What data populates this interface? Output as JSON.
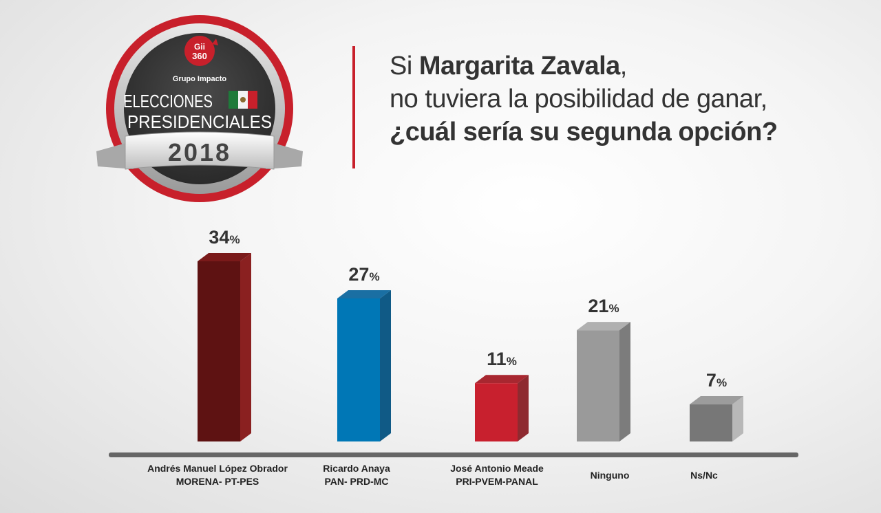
{
  "badge": {
    "logo_line1": "Gii",
    "logo_line2": "360",
    "brand": "Grupo Impacto",
    "line1": "ELECCIONES",
    "line2": "PRESIDENCIALES",
    "year": "2018"
  },
  "question": {
    "pre": "Si ",
    "name": "Margarita Zavala",
    "comma": ",",
    "line2": "no tuviera la posibilidad de ganar,",
    "line3": "¿cuál sería su segunda opción?"
  },
  "chart_data": {
    "type": "bar",
    "title": "Si Margarita Zavala, no tuviera la posibilidad de ganar, ¿cuál sería su segunda opción?",
    "categories": [
      [
        "Andrés Manuel López Obrador",
        "MORENA- PT-PES"
      ],
      [
        "Ricardo Anaya",
        "PAN- PRD-MC"
      ],
      [
        "José Antonio Meade",
        "PRI-PVEM-PANAL"
      ],
      [
        "Ninguno"
      ],
      [
        "Ns/Nc"
      ]
    ],
    "values": [
      34,
      27,
      11,
      21,
      7
    ],
    "value_suffix": "%",
    "colors": {
      "front": [
        "#5e1212",
        "#0077b6",
        "#c8202e",
        "#9a9a9a",
        "#777777"
      ],
      "side": [
        "#8a2020",
        "#105a86",
        "#8e2a30",
        "#7c7c7c",
        "#b8b8b8"
      ],
      "top": [
        "#7a1a1a",
        "#1a6fa3",
        "#a82730",
        "#b0b0b0",
        "#9c9c9c"
      ]
    },
    "ylim": [
      0,
      34
    ],
    "xlabel": "",
    "ylabel": ""
  }
}
